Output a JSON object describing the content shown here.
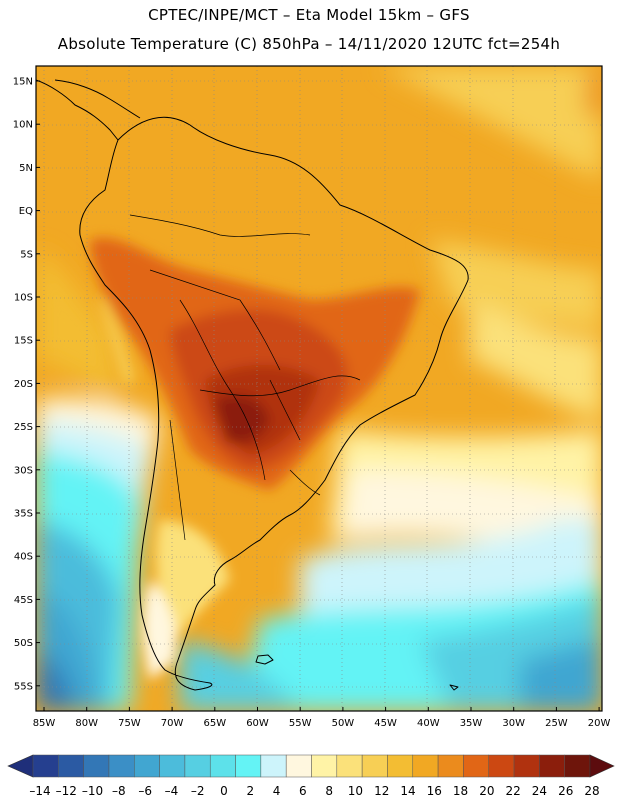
{
  "header": {
    "line1": "CPTEC/INPE/MCT –  Eta Model 15km – GFS",
    "line2": "Absolute Temperature (C) 850hPa – 14/11/2020 12UTC fct=254h"
  },
  "axes": {
    "lat_labels": [
      "15N",
      "10N",
      "5N",
      "EQ",
      "5S",
      "10S",
      "15S",
      "20S",
      "25S",
      "30S",
      "35S",
      "40S",
      "45S",
      "50S",
      "55S"
    ],
    "lon_labels": [
      "85W",
      "80W",
      "75W",
      "70W",
      "65W",
      "60W",
      "55W",
      "50W",
      "45W",
      "40W",
      "35W",
      "30W",
      "25W",
      "20W"
    ]
  },
  "colorbar": {
    "values": [
      "-14",
      "-12",
      "-10",
      "-8",
      "-6",
      "-4",
      "-2",
      "0",
      "2",
      "4",
      "6",
      "8",
      "10",
      "12",
      "14",
      "16",
      "18",
      "20",
      "22",
      "24",
      "26",
      "28"
    ],
    "colors": [
      "#253f8f",
      "#2b5aa3",
      "#3377b6",
      "#3b8fc6",
      "#41a6d1",
      "#4cbcdb",
      "#56cfe2",
      "#5de1ea",
      "#64f3f5",
      "#cdf4fb",
      "#fff7df",
      "#fff3a6",
      "#fbe17a",
      "#f7cf55",
      "#f3bd33",
      "#f1a823",
      "#eb8b1d",
      "#e16616",
      "#cc4812",
      "#b0320f",
      "#8b1e0c",
      "#6e150b"
    ],
    "min_arrow_color": "#1f2f7a",
    "max_arrow_color": "#5c0c0e"
  },
  "colors": {
    "land_hot": "#a83a0e",
    "land_warm": "#e57c16",
    "ocean_warm": "#f1a823",
    "ocean_mild": "#f7d36a",
    "ocean_cool": "#fff7df",
    "ocean_cold": "#64f3f5",
    "ocean_colder": "#41a6d1"
  }
}
